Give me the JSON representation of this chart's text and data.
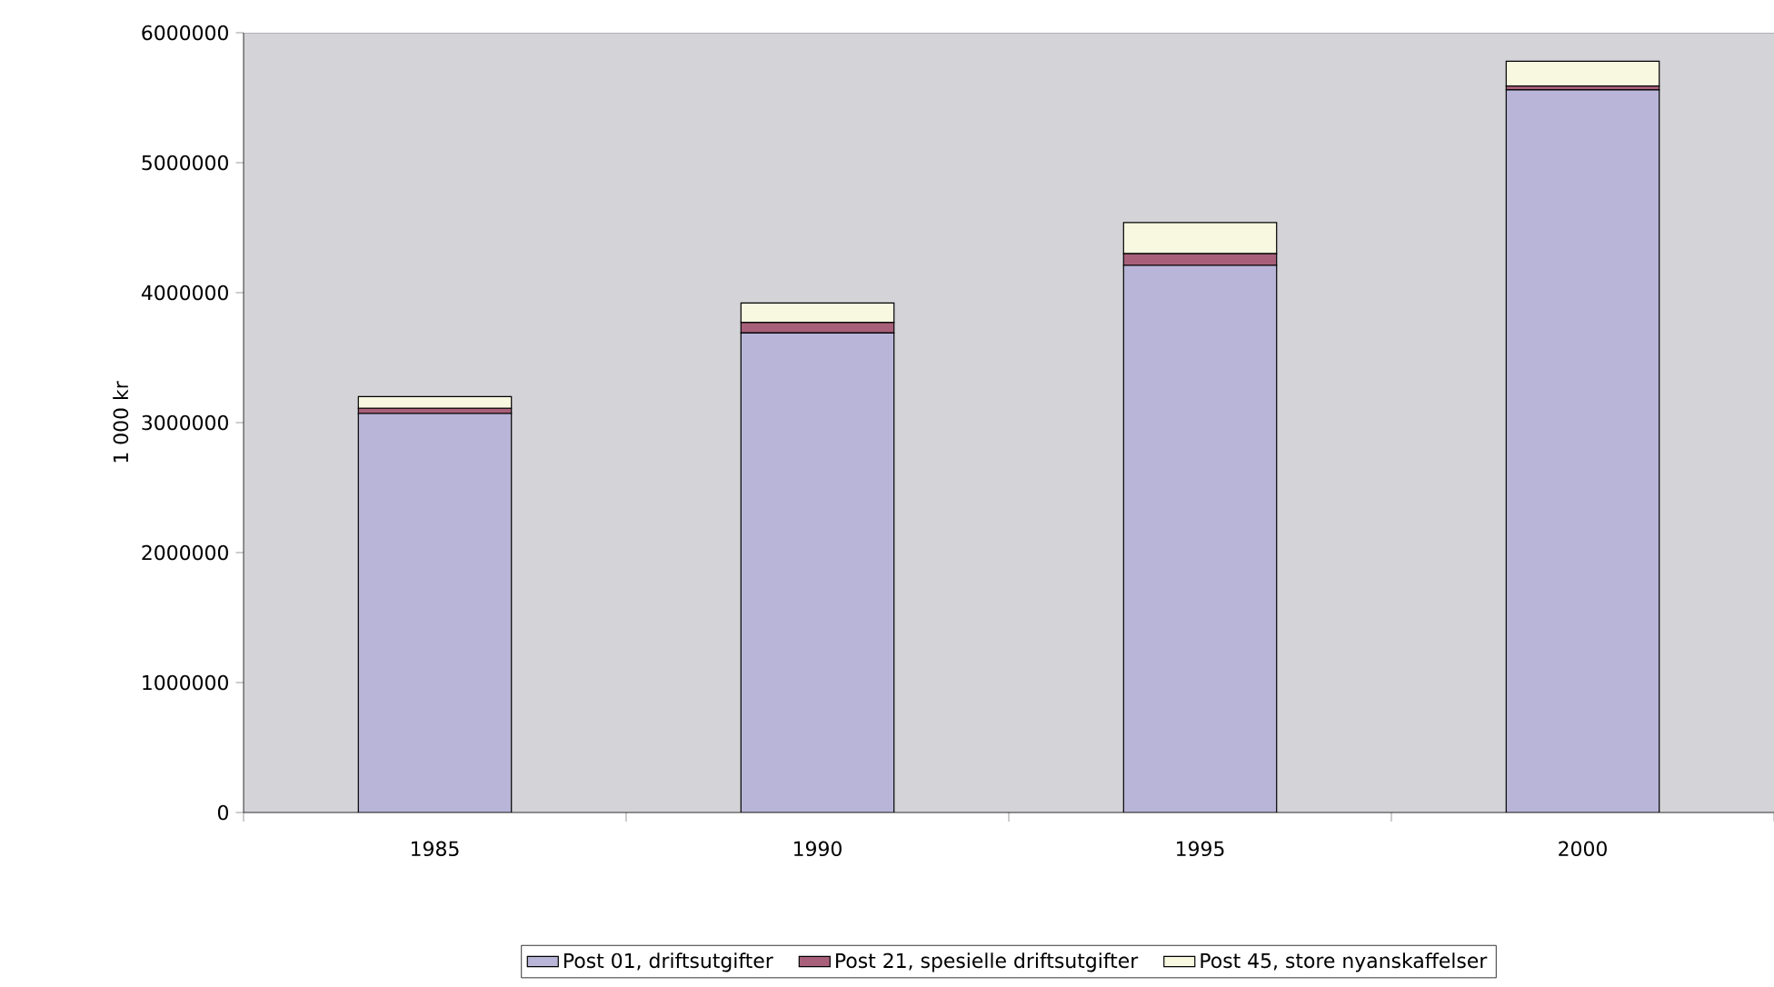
{
  "chart_data": {
    "type": "bar",
    "stacked": true,
    "ylabel": "1 000 kr",
    "categories": [
      "1985",
      "1990",
      "1995",
      "2000"
    ],
    "series": [
      {
        "name": "Post 01, driftsutgifter",
        "color": "#b8b5d8",
        "values": [
          3070000,
          3690000,
          4210000,
          5560000
        ]
      },
      {
        "name": "Post 21, spesielle driftsutgifter",
        "color": "#a8607a",
        "values": [
          40000,
          80000,
          90000,
          30000
        ]
      },
      {
        "name": "Post 45, store nyanskaffelser",
        "color": "#f8f8e0",
        "values": [
          90000,
          150000,
          240000,
          190000
        ]
      }
    ],
    "ylim": [
      0,
      6000000
    ],
    "yticks": [
      0,
      1000000,
      2000000,
      3000000,
      4000000,
      5000000,
      6000000
    ],
    "grid": false,
    "legend": "bottom"
  }
}
